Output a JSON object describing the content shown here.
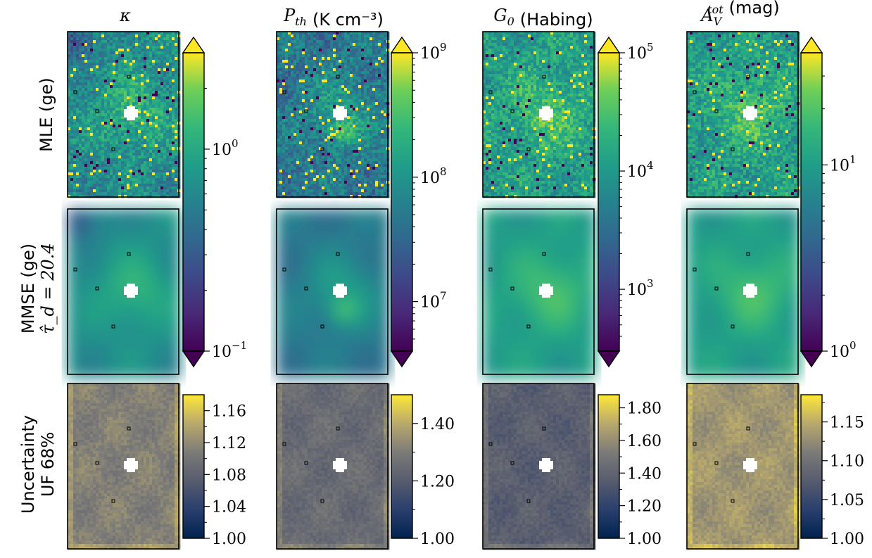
{
  "columns": [
    {
      "sym": "κ",
      "sub": "",
      "sup": "",
      "unit": ""
    },
    {
      "sym": "P",
      "sub": "th",
      "sup": "",
      "unit": "(K cm⁻³)"
    },
    {
      "sym": "G",
      "sub": "0",
      "sup": "",
      "unit": "(Habing)"
    },
    {
      "sym": "A",
      "sub": "V",
      "sup": "tot",
      "unit": "(mag)"
    }
  ],
  "rows": [
    {
      "lines": [
        "MLE (ge)"
      ]
    },
    {
      "lines": [
        "MMSE (ge)",
        "τ̂_d = 20.4"
      ]
    },
    {
      "lines": [
        "Uncertainty",
        "UF 68%"
      ]
    }
  ],
  "chart_data": [
    {
      "type": "heatmap",
      "panel": "main colorbars (MLE and MMSE rows)",
      "colormap": "viridis",
      "scale": "log",
      "extend": "both",
      "colorbars": [
        {
          "quantity": "κ",
          "range": [
            0.1,
            3.0
          ],
          "ticks": [
            {
              "value": 0.1,
              "base": "10",
              "exp": "−1"
            },
            {
              "value": 1,
              "base": "10",
              "exp": "0"
            }
          ]
        },
        {
          "quantity": "P_th",
          "range": [
            4000000,
            1000000000
          ],
          "ticks": [
            {
              "value": 10000000,
              "base": "10",
              "exp": "7"
            },
            {
              "value": 100000000,
              "base": "10",
              "exp": "8"
            },
            {
              "value": 1000000000,
              "base": "10",
              "exp": "9"
            }
          ]
        },
        {
          "quantity": "G_0",
          "range": [
            300,
            100000
          ],
          "ticks": [
            {
              "value": 1000,
              "base": "10",
              "exp": "3"
            },
            {
              "value": 10000,
              "base": "10",
              "exp": "4"
            },
            {
              "value": 100000,
              "base": "10",
              "exp": "5"
            }
          ]
        },
        {
          "quantity": "A_V^tot",
          "range": [
            1,
            40
          ],
          "ticks": [
            {
              "value": 1,
              "base": "10",
              "exp": "0"
            },
            {
              "value": 10,
              "base": "10",
              "exp": "1"
            }
          ]
        }
      ]
    },
    {
      "type": "heatmap",
      "panel": "uncertainty factor colorbars",
      "colormap": "cividis",
      "scale": "linear",
      "colorbars": [
        {
          "quantity": "κ",
          "range": [
            1.0,
            1.18
          ],
          "ticks": [
            {
              "value": 1.0,
              "label": "1.00"
            },
            {
              "value": 1.04,
              "label": "1.04"
            },
            {
              "value": 1.08,
              "label": "1.08"
            },
            {
              "value": 1.12,
              "label": "1.12"
            },
            {
              "value": 1.16,
              "label": "1.16"
            }
          ]
        },
        {
          "quantity": "P_th",
          "range": [
            1.0,
            1.5
          ],
          "ticks": [
            {
              "value": 1.0,
              "label": "1.00"
            },
            {
              "value": 1.2,
              "label": "1.20"
            },
            {
              "value": 1.4,
              "label": "1.40"
            }
          ]
        },
        {
          "quantity": "G_0",
          "range": [
            1.0,
            1.88
          ],
          "ticks": [
            {
              "value": 1.0,
              "label": "1.00"
            },
            {
              "value": 1.2,
              "label": "1.20"
            },
            {
              "value": 1.4,
              "label": "1.40"
            },
            {
              "value": 1.6,
              "label": "1.60"
            },
            {
              "value": 1.8,
              "label": "1.80"
            }
          ]
        },
        {
          "quantity": "A_V^tot",
          "range": [
            1.0,
            1.185
          ],
          "ticks": [
            {
              "value": 1.0,
              "label": "1.00"
            },
            {
              "value": 1.05,
              "label": "1.05"
            },
            {
              "value": 1.1,
              "label": "1.10"
            },
            {
              "value": 1.15,
              "label": "1.15"
            }
          ]
        }
      ]
    }
  ]
}
